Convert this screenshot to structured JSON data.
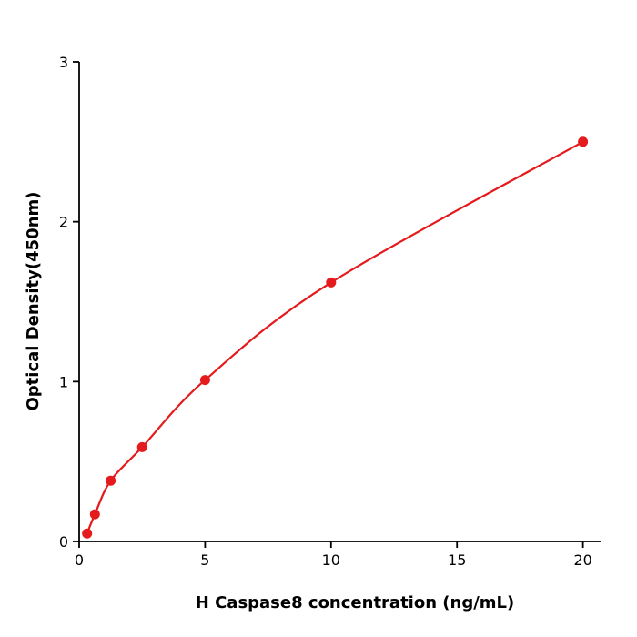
{
  "chart_data": {
    "type": "scatter",
    "subtype": "standard-curve-with-smooth-fit",
    "title": "",
    "xlabel": "H  Caspase8 concentration (ng/mL)",
    "ylabel": "Optical Density(450nm)",
    "x": [
      0.3125,
      0.625,
      1.25,
      2.5,
      5,
      10,
      20
    ],
    "y": [
      0.05,
      0.17,
      0.38,
      0.59,
      1.01,
      1.62,
      2.5
    ],
    "xticks": [
      0,
      5,
      10,
      15,
      20
    ],
    "yticks": [
      0,
      1,
      2,
      3
    ],
    "xlim": [
      0,
      20.7
    ],
    "ylim": [
      0,
      3
    ],
    "grid": false,
    "legend_position": "none",
    "series_color": "#e41a1c",
    "axis_color": "#000000",
    "marker": "circle",
    "marker_radius": 5.5,
    "line_width": 2.2
  }
}
